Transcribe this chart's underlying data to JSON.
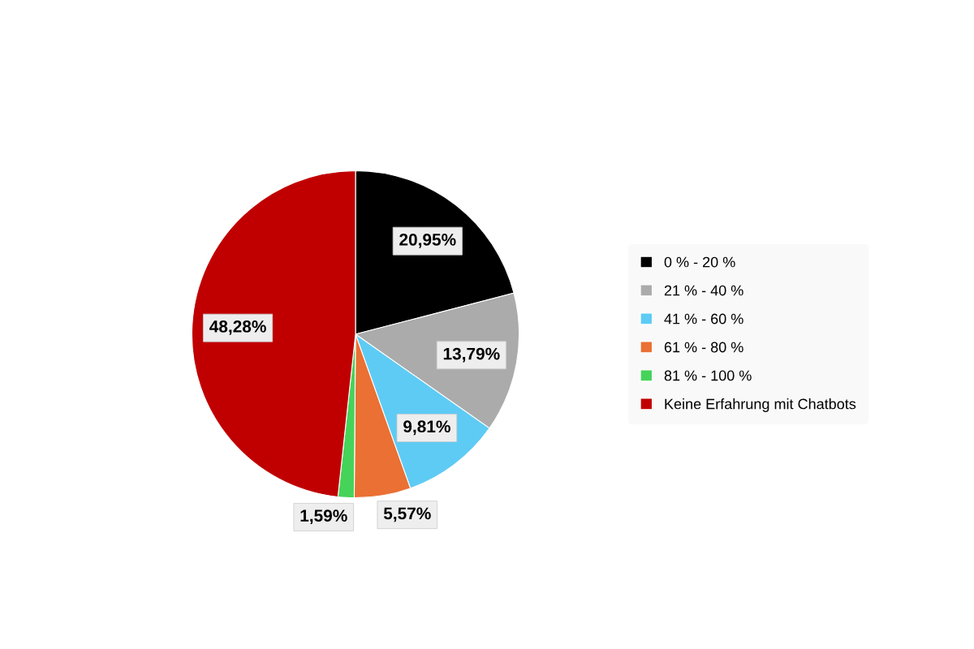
{
  "chart_data": {
    "type": "pie",
    "categories": [
      "0 % - 20 %",
      "21 % - 40 %",
      "41 % - 60 %",
      "61 % - 80 %",
      "81 % - 100 %",
      "Keine Erfahrung mit Chatbots"
    ],
    "values": [
      20.95,
      13.79,
      9.81,
      5.57,
      1.59,
      48.28
    ],
    "colors": [
      "#000000",
      "#ababab",
      "#5ecbf5",
      "#ea7034",
      "#46d35a",
      "#c00000"
    ],
    "value_labels": [
      "20,95%",
      "13,79%",
      "9,81%",
      "5,57%",
      "1,59%",
      "48,28%"
    ],
    "legend": "right"
  }
}
